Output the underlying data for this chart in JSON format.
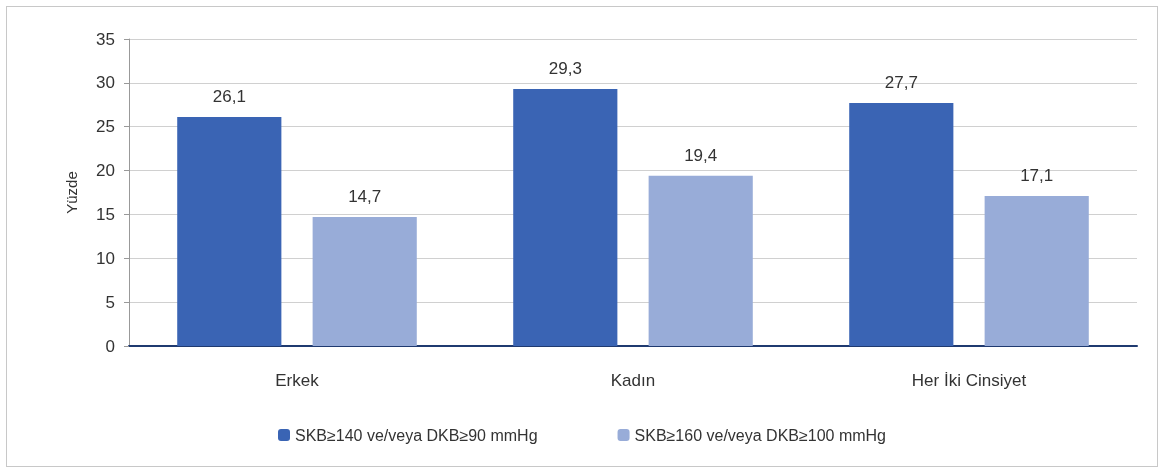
{
  "chart_data": {
    "type": "bar",
    "ylabel": "Yüzde",
    "categories": [
      "Erkek",
      "Kadın",
      "Her İki Cinsiyet"
    ],
    "series": [
      {
        "name": "SKB≥140 ve/veya DKB≥90 mmHg",
        "color": "#3a64b4",
        "values": [
          26.1,
          29.3,
          27.7
        ],
        "value_labels": [
          "26,1",
          "29,3",
          "27,7"
        ]
      },
      {
        "name": "SKB≥160 ve/veya DKB≥100 mmHg",
        "color": "#98acd8",
        "values": [
          14.7,
          19.4,
          17.1
        ],
        "value_labels": [
          "14,7",
          "19,4",
          "17,1"
        ]
      }
    ],
    "ylim": [
      0,
      35
    ],
    "yticks": [
      0,
      5,
      10,
      15,
      20,
      25,
      30,
      35
    ],
    "grid": "y",
    "legend": "bottom"
  }
}
